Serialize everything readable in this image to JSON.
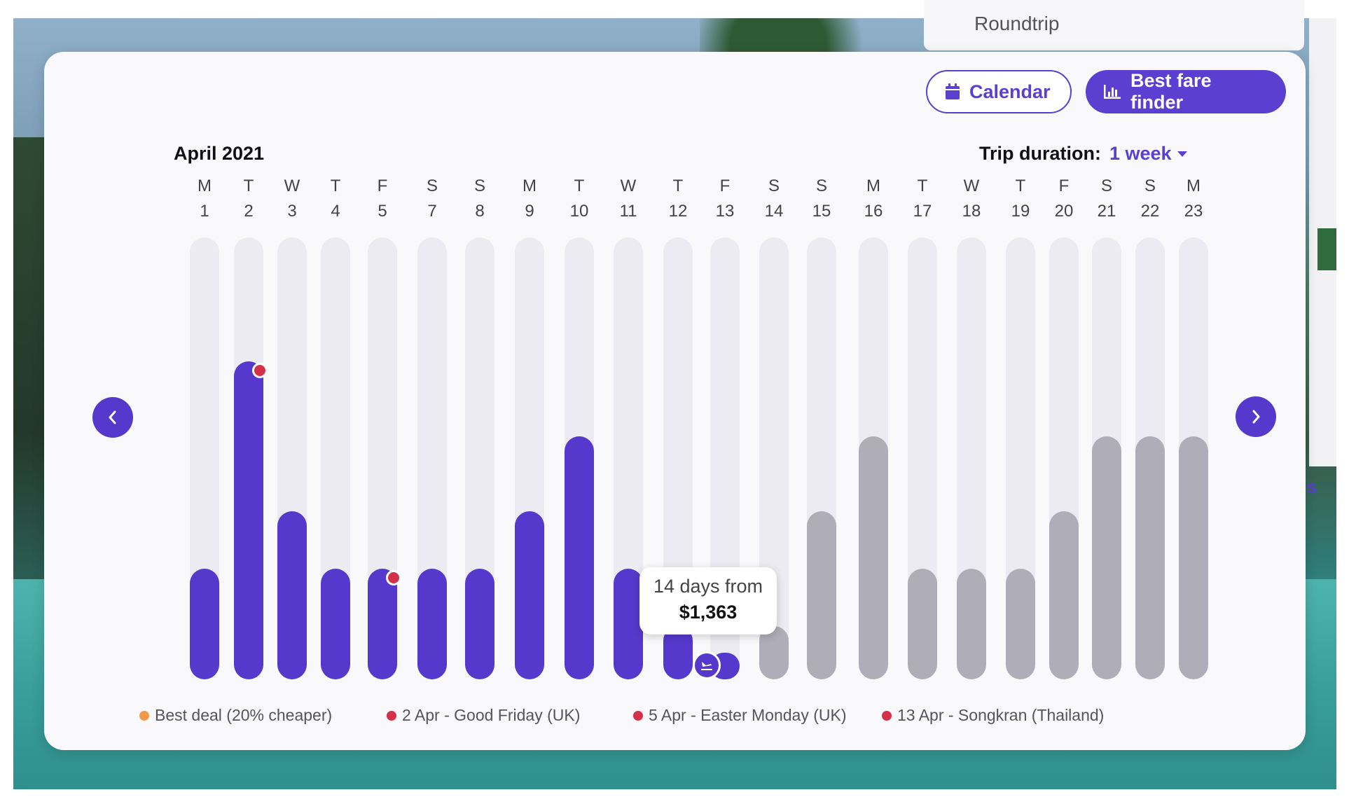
{
  "background": {
    "top_card_text": "Roundtrip",
    "peek_text": "es"
  },
  "buttons": {
    "calendar_label": "Calendar",
    "finder_label": "Best fare finder"
  },
  "header": {
    "month": "April 2021",
    "trip_duration_label": "Trip duration:",
    "trip_duration_value": "1 week"
  },
  "days": [
    {
      "weekday": "M",
      "date": "1"
    },
    {
      "weekday": "T",
      "date": "2"
    },
    {
      "weekday": "W",
      "date": "3"
    },
    {
      "weekday": "T",
      "date": "4"
    },
    {
      "weekday": "F",
      "date": "5"
    },
    {
      "weekday": "S",
      "date": "7"
    },
    {
      "weekday": "S",
      "date": "8"
    },
    {
      "weekday": "M",
      "date": "9"
    },
    {
      "weekday": "T",
      "date": "10"
    },
    {
      "weekday": "W",
      "date": "11"
    },
    {
      "weekday": "T",
      "date": "12"
    },
    {
      "weekday": "F",
      "date": "13"
    },
    {
      "weekday": "S",
      "date": "14"
    },
    {
      "weekday": "S",
      "date": "15"
    },
    {
      "weekday": "M",
      "date": "16"
    },
    {
      "weekday": "T",
      "date": "17"
    },
    {
      "weekday": "W",
      "date": "18"
    },
    {
      "weekday": "T",
      "date": "19"
    },
    {
      "weekday": "F",
      "date": "20"
    },
    {
      "weekday": "S",
      "date": "21"
    },
    {
      "weekday": "S",
      "date": "22"
    },
    {
      "weekday": "M",
      "date": "23"
    }
  ],
  "chart_data": {
    "type": "bar",
    "categories": [
      "1",
      "2",
      "3",
      "4",
      "5",
      "7",
      "8",
      "9",
      "10",
      "11",
      "12",
      "13",
      "14",
      "15",
      "16",
      "17",
      "18",
      "19",
      "20",
      "21",
      "22",
      "23"
    ],
    "values": [
      0.25,
      0.72,
      0.38,
      0.25,
      0.25,
      0.25,
      0.25,
      0.38,
      0.55,
      0.25,
      0.12,
      0.06,
      0.12,
      0.38,
      0.55,
      0.25,
      0.25,
      0.25,
      0.38,
      0.55,
      0.55,
      0.55
    ],
    "active": [
      true,
      true,
      true,
      true,
      true,
      true,
      true,
      true,
      true,
      true,
      true,
      true,
      false,
      false,
      false,
      false,
      false,
      false,
      false,
      false,
      false,
      false
    ],
    "holiday_dots": [
      "2",
      "5"
    ],
    "selected": "13",
    "ylim": [
      0,
      1
    ],
    "colors": {
      "active": "#5439cc",
      "inactive": "#afadb8",
      "track": "#ecebf1",
      "holiday": "#d4304a",
      "best_deal": "#f29a4a"
    }
  },
  "tooltip": {
    "line1": "14 days from",
    "price": "$1,363"
  },
  "icons": {
    "calendar": "calendar-icon",
    "finder": "bar-chart-icon",
    "prev": "chevron-left-icon",
    "next": "chevron-right-icon",
    "plane": "plane-landing-icon"
  },
  "legend": [
    {
      "label": "Best deal (20% cheaper)",
      "color": "#f29a4a"
    },
    {
      "label": "2 Apr - Good Friday (UK)",
      "color": "#d4304a"
    },
    {
      "label": "5 Apr - Easter Monday (UK)",
      "color": "#d4304a"
    },
    {
      "label": "13 Apr - Songkran (Thailand)",
      "color": "#d4304a"
    }
  ]
}
